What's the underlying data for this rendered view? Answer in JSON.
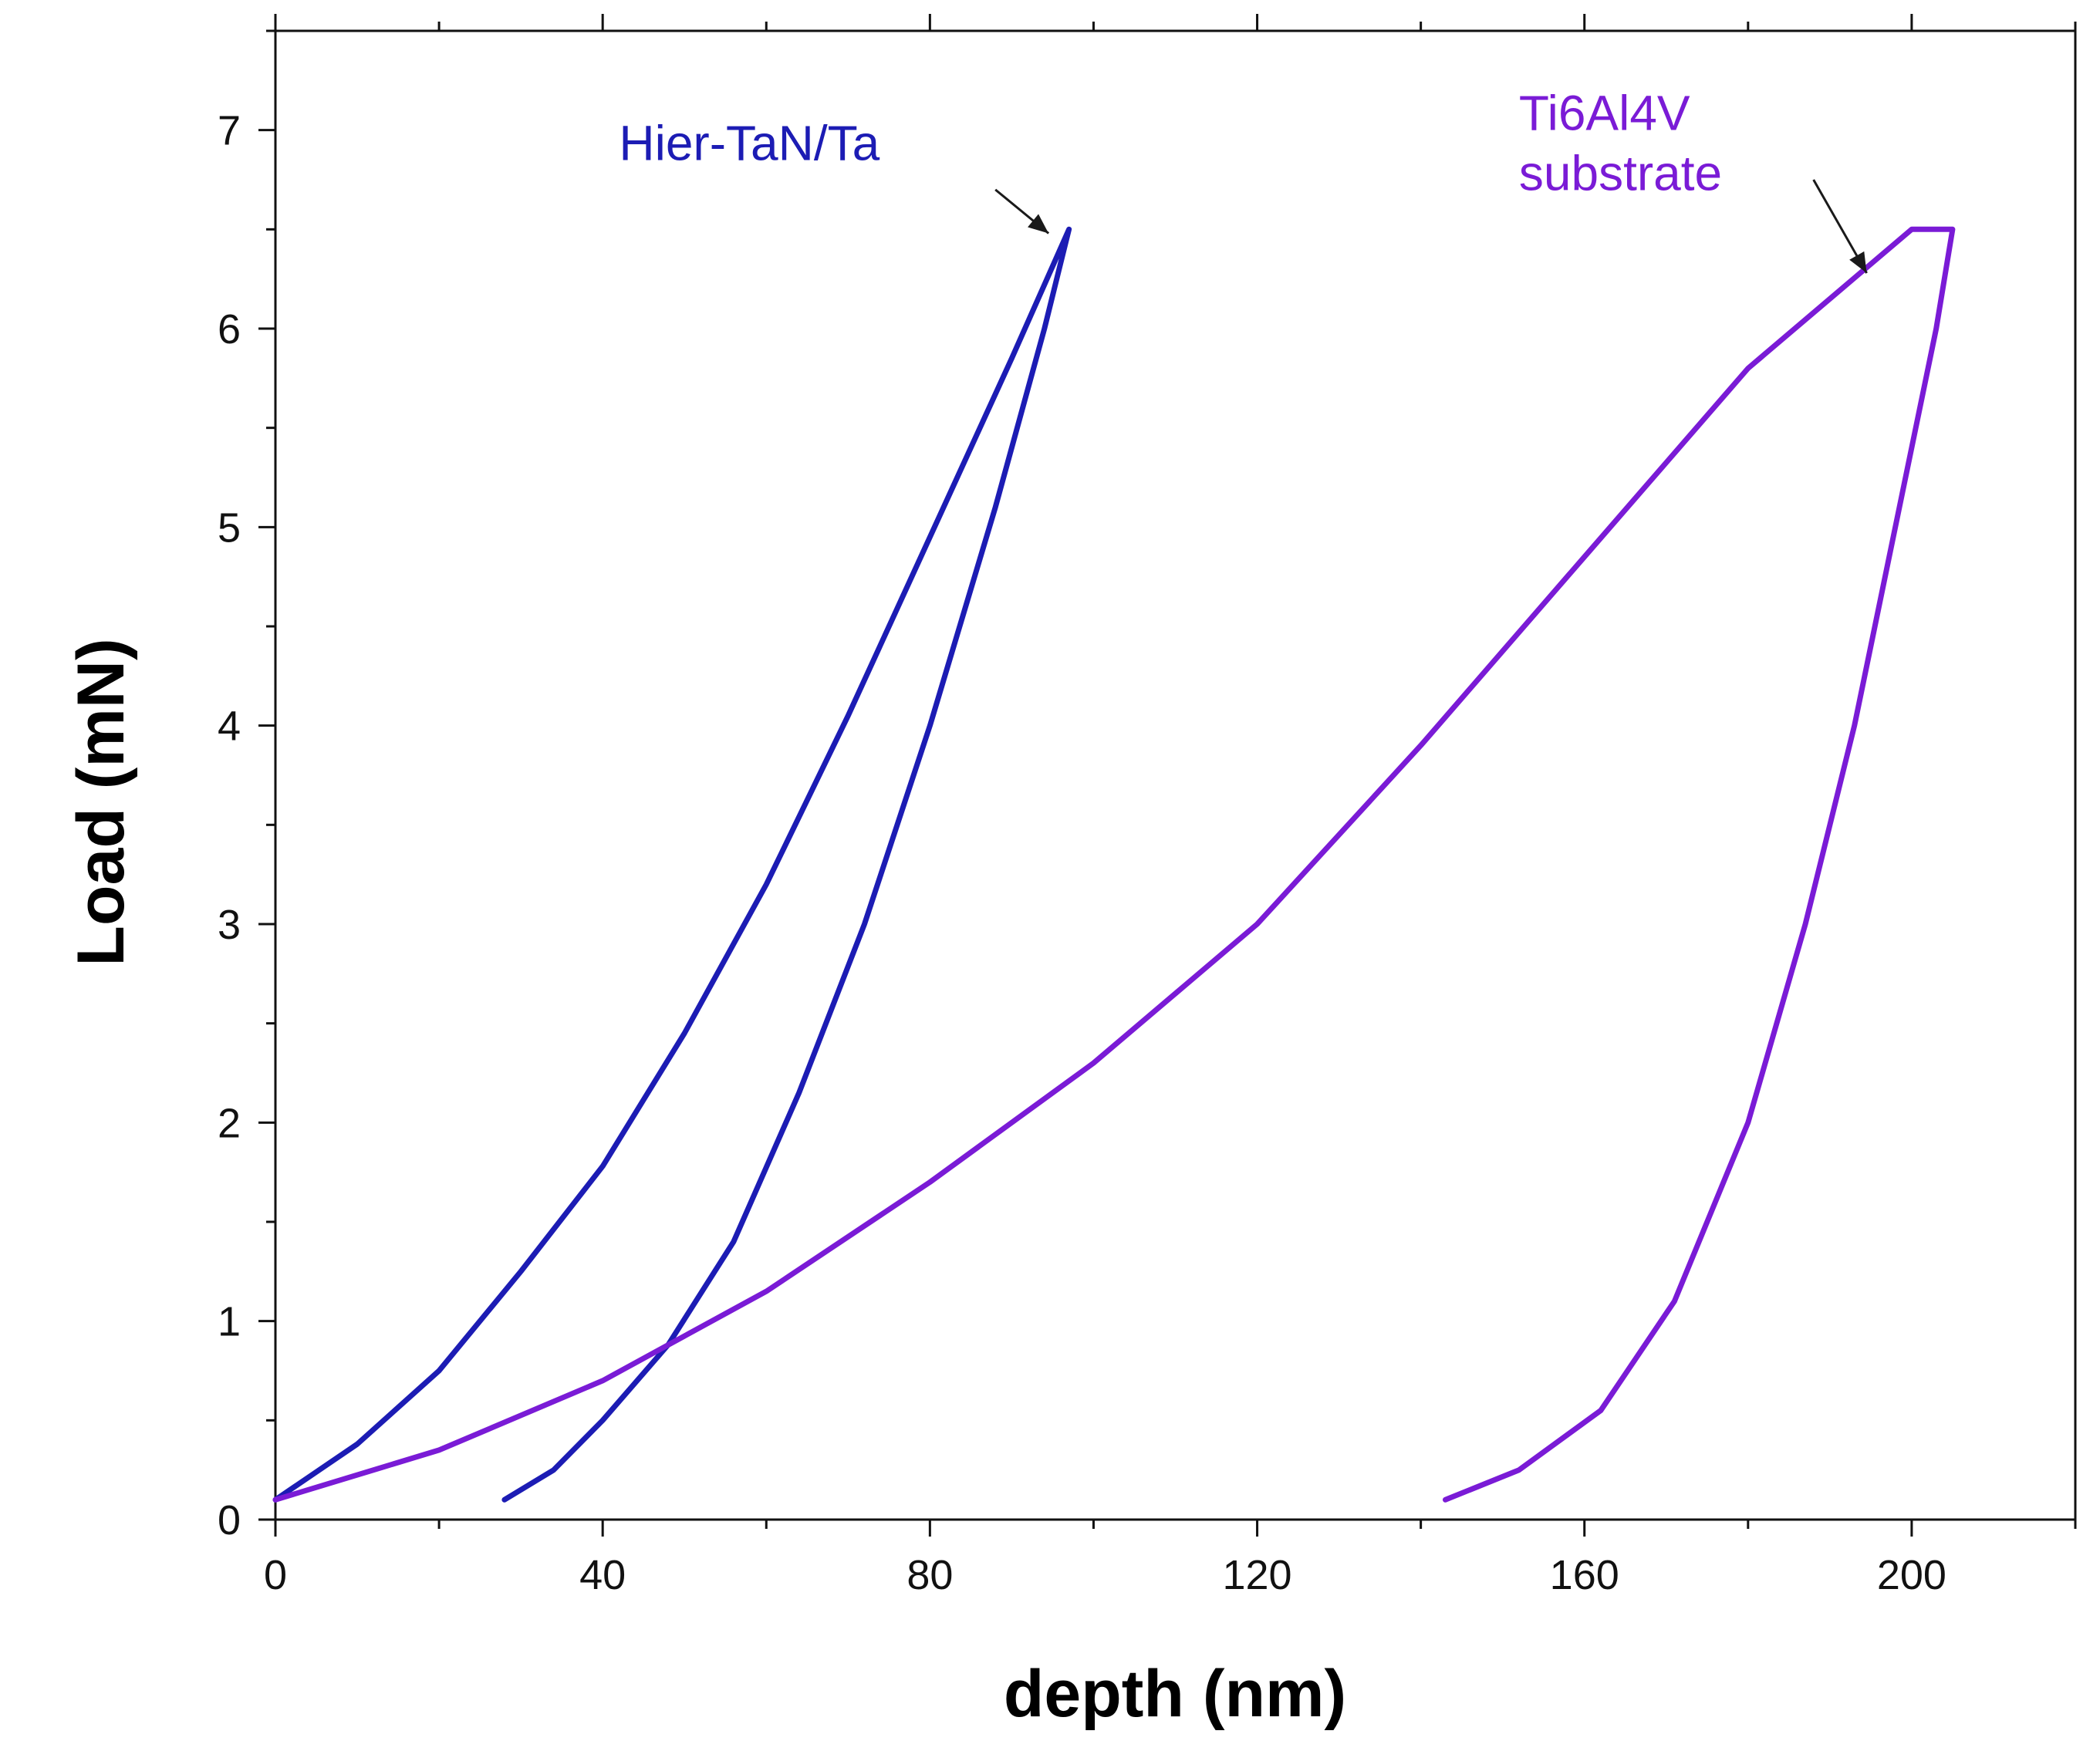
{
  "chart_data": {
    "type": "line",
    "xlabel": "depth (nm)",
    "ylabel": "Load (mN)",
    "xlim": [
      0,
      220
    ],
    "ylim": [
      0,
      7.5
    ],
    "xticks": [
      0,
      40,
      80,
      120,
      160,
      200
    ],
    "yticks": [
      0,
      1,
      2,
      3,
      4,
      5,
      6,
      7
    ],
    "x_minor_step": 20,
    "y_minor_step": 0.5,
    "series": [
      {
        "name": "Hier-TaN/Ta",
        "color": "#1c1cb4",
        "label": "Hier-TaN/Ta",
        "label_anchor": [
          42,
          6.85
        ],
        "arrow_from": [
          88,
          6.7
        ],
        "arrow_to": [
          94.5,
          6.48
        ],
        "points": [
          [
            0,
            0.1
          ],
          [
            10,
            0.38
          ],
          [
            20,
            0.75
          ],
          [
            30,
            1.25
          ],
          [
            40,
            1.78
          ],
          [
            50,
            2.45
          ],
          [
            60,
            3.2
          ],
          [
            70,
            4.05
          ],
          [
            80,
            4.95
          ],
          [
            90,
            5.85
          ],
          [
            97,
            6.5
          ],
          [
            94,
            6.0
          ],
          [
            88,
            5.1
          ],
          [
            80,
            4.0
          ],
          [
            72,
            3.0
          ],
          [
            64,
            2.15
          ],
          [
            56,
            1.4
          ],
          [
            48,
            0.88
          ],
          [
            40,
            0.5
          ],
          [
            34,
            0.25
          ],
          [
            28,
            0.1
          ]
        ]
      },
      {
        "name": "Ti6Al4V substrate",
        "color": "#7a1bd6",
        "label": "Ti6Al4V",
        "label_line2": "substrate",
        "label_anchor": [
          152,
          7.0
        ],
        "arrow_from": [
          188,
          6.75
        ],
        "arrow_to": [
          194.5,
          6.28
        ],
        "points": [
          [
            0,
            0.1
          ],
          [
            20,
            0.35
          ],
          [
            40,
            0.7
          ],
          [
            60,
            1.15
          ],
          [
            80,
            1.7
          ],
          [
            100,
            2.3
          ],
          [
            120,
            3.0
          ],
          [
            140,
            3.9
          ],
          [
            160,
            4.85
          ],
          [
            180,
            5.8
          ],
          [
            200,
            6.5
          ],
          [
            205,
            6.5
          ],
          [
            203,
            6.0
          ],
          [
            198,
            5.0
          ],
          [
            193,
            4.0
          ],
          [
            187,
            3.0
          ],
          [
            180,
            2.0
          ],
          [
            171,
            1.1
          ],
          [
            162,
            0.55
          ],
          [
            152,
            0.25
          ],
          [
            143,
            0.1
          ]
        ]
      }
    ]
  }
}
